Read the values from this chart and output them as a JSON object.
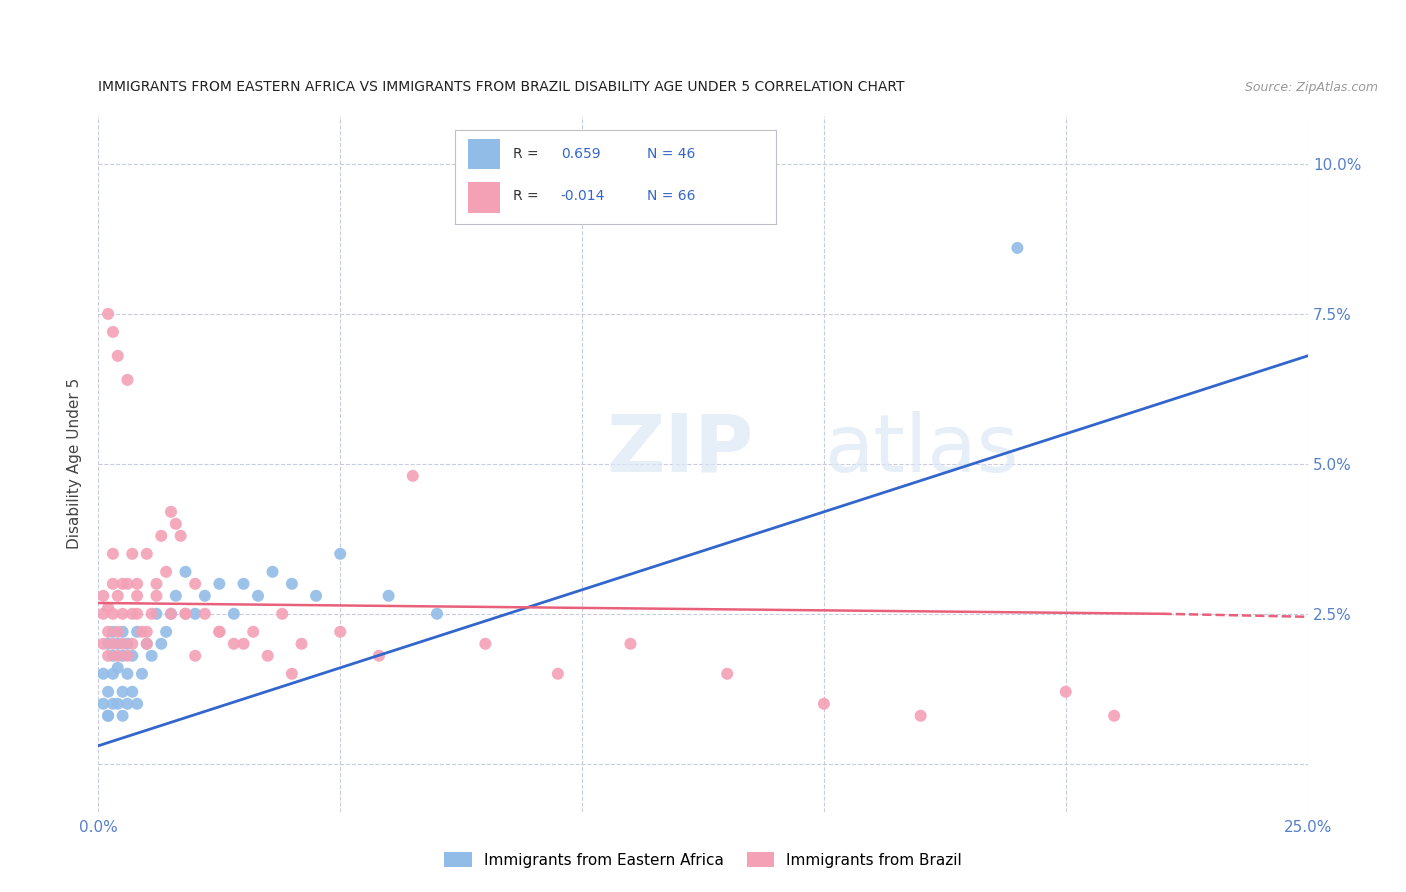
{
  "title": "IMMIGRANTS FROM EASTERN AFRICA VS IMMIGRANTS FROM BRAZIL DISABILITY AGE UNDER 5 CORRELATION CHART",
  "source": "Source: ZipAtlas.com",
  "ylabel": "Disability Age Under 5",
  "xmin": 0.0,
  "xmax": 0.25,
  "ymin": -0.008,
  "ymax": 0.108,
  "xticks": [
    0.0,
    0.05,
    0.1,
    0.15,
    0.2,
    0.25
  ],
  "xtick_labels": [
    "0.0%",
    "",
    "",
    "",
    "",
    "25.0%"
  ],
  "yticks": [
    0.0,
    0.025,
    0.05,
    0.075,
    0.1
  ],
  "ytick_labels": [
    "",
    "2.5%",
    "5.0%",
    "7.5%",
    "10.0%"
  ],
  "R_blue": "0.659",
  "N_blue": "46",
  "R_pink": "-0.014",
  "N_pink": "66",
  "color_blue": "#92bce8",
  "color_pink": "#f4a0b5",
  "line_blue": "#3366cc",
  "line_pink": "#e8607a",
  "blue_x": [
    0.001,
    0.001,
    0.002,
    0.002,
    0.002,
    0.003,
    0.003,
    0.003,
    0.003,
    0.004,
    0.004,
    0.004,
    0.005,
    0.005,
    0.005,
    0.005,
    0.006,
    0.006,
    0.006,
    0.007,
    0.007,
    0.008,
    0.008,
    0.009,
    0.01,
    0.011,
    0.012,
    0.013,
    0.014,
    0.015,
    0.016,
    0.018,
    0.02,
    0.022,
    0.025,
    0.028,
    0.03,
    0.033,
    0.036,
    0.04,
    0.045,
    0.05,
    0.06,
    0.07,
    0.19,
    0.002
  ],
  "blue_y": [
    0.01,
    0.015,
    0.008,
    0.012,
    0.02,
    0.01,
    0.015,
    0.018,
    0.022,
    0.01,
    0.016,
    0.02,
    0.008,
    0.012,
    0.018,
    0.022,
    0.01,
    0.015,
    0.02,
    0.012,
    0.018,
    0.01,
    0.022,
    0.015,
    0.02,
    0.018,
    0.025,
    0.02,
    0.022,
    0.025,
    0.028,
    0.032,
    0.025,
    0.028,
    0.03,
    0.025,
    0.03,
    0.028,
    0.032,
    0.03,
    0.028,
    0.035,
    0.028,
    0.025,
    0.086,
    0.008
  ],
  "pink_x": [
    0.001,
    0.001,
    0.001,
    0.002,
    0.002,
    0.002,
    0.003,
    0.003,
    0.003,
    0.003,
    0.004,
    0.004,
    0.004,
    0.005,
    0.005,
    0.005,
    0.006,
    0.006,
    0.007,
    0.007,
    0.008,
    0.008,
    0.009,
    0.01,
    0.01,
    0.011,
    0.012,
    0.013,
    0.014,
    0.015,
    0.016,
    0.017,
    0.018,
    0.02,
    0.022,
    0.025,
    0.028,
    0.032,
    0.038,
    0.042,
    0.05,
    0.058,
    0.065,
    0.08,
    0.095,
    0.11,
    0.13,
    0.15,
    0.17,
    0.2,
    0.002,
    0.003,
    0.004,
    0.006,
    0.007,
    0.008,
    0.01,
    0.012,
    0.015,
    0.018,
    0.02,
    0.025,
    0.03,
    0.035,
    0.04,
    0.21
  ],
  "pink_y": [
    0.02,
    0.025,
    0.028,
    0.018,
    0.022,
    0.026,
    0.02,
    0.025,
    0.03,
    0.035,
    0.018,
    0.022,
    0.028,
    0.02,
    0.025,
    0.03,
    0.018,
    0.03,
    0.02,
    0.035,
    0.025,
    0.03,
    0.022,
    0.02,
    0.035,
    0.025,
    0.03,
    0.038,
    0.032,
    0.042,
    0.04,
    0.038,
    0.025,
    0.03,
    0.025,
    0.022,
    0.02,
    0.022,
    0.025,
    0.02,
    0.022,
    0.018,
    0.048,
    0.02,
    0.015,
    0.02,
    0.015,
    0.01,
    0.008,
    0.012,
    0.075,
    0.072,
    0.068,
    0.064,
    0.025,
    0.028,
    0.022,
    0.028,
    0.025,
    0.025,
    0.018,
    0.022,
    0.02,
    0.018,
    0.015,
    0.008
  ],
  "watermark_line1": "ZIP",
  "watermark_line2": "atlas",
  "blue_line_x0": 0.0,
  "blue_line_x1": 0.25,
  "blue_line_y0": 0.003,
  "blue_line_y1": 0.068,
  "pink_line_x0": 0.0,
  "pink_line_x1": 0.22,
  "pink_line_x1_dash": 0.25,
  "pink_line_y0": 0.0268,
  "pink_line_y1": 0.025,
  "pink_line_y1_dash": 0.0245
}
